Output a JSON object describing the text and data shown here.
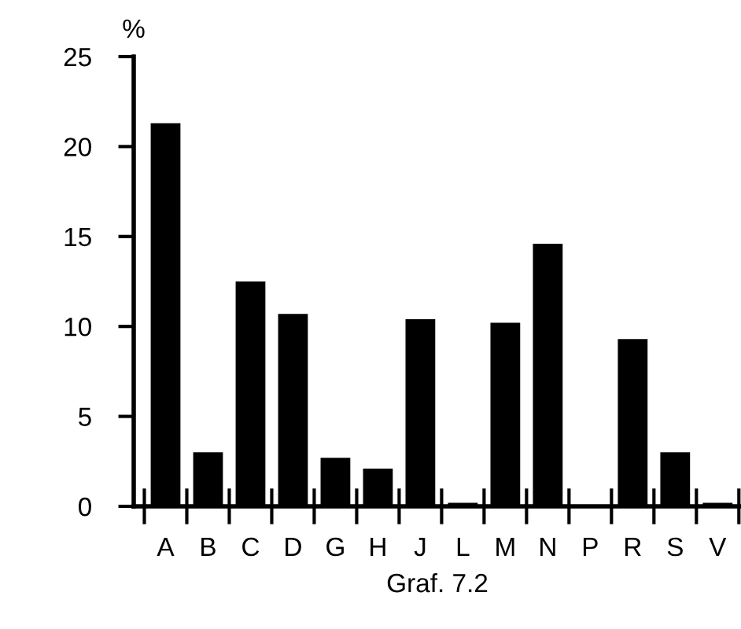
{
  "chart_data": {
    "type": "bar",
    "ylabel": "%",
    "categories": [
      "A",
      "B",
      "C",
      "D",
      "G",
      "H",
      "J",
      "L",
      "M",
      "N",
      "P",
      "R",
      "S",
      "V"
    ],
    "values": [
      21.3,
      3.0,
      12.5,
      10.7,
      2.7,
      2.1,
      10.4,
      0.2,
      10.2,
      14.6,
      0,
      9.3,
      3.0,
      0.2
    ],
    "color": "#000000",
    "ylim": [
      0,
      25
    ],
    "yticks": [
      0,
      5,
      10,
      15,
      20,
      25
    ],
    "grid": false,
    "legend": false,
    "annotations": [
      "Graf. 7.2"
    ]
  }
}
